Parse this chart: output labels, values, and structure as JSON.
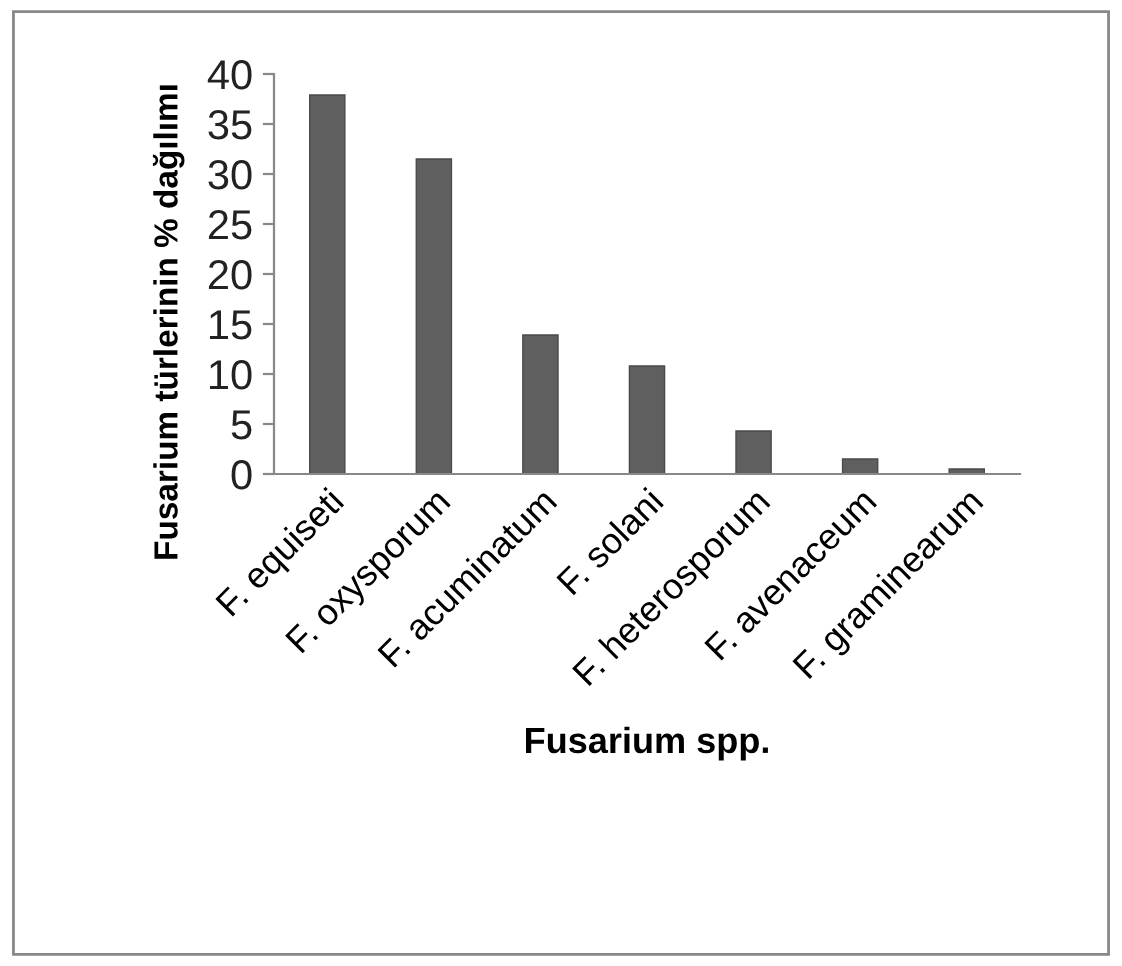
{
  "chart_data": {
    "type": "bar",
    "xlabel": "Fusarium spp.",
    "ylabel": "Fusarium türlerinin % dağılımı",
    "categories": [
      "F. equiseti",
      "F. oxysporum",
      "F. acuminatum",
      "F. solani",
      "F. heterosporum",
      "F. avenaceum",
      "F. graminearum"
    ],
    "values": [
      37.9,
      31.5,
      13.9,
      10.8,
      4.3,
      1.5,
      0.5
    ],
    "color": "#5f5f5f",
    "ylim": [
      0,
      40
    ],
    "yticks": [
      0,
      5,
      10,
      15,
      20,
      25,
      30,
      35,
      40
    ],
    "grid": false,
    "legend": false
  }
}
